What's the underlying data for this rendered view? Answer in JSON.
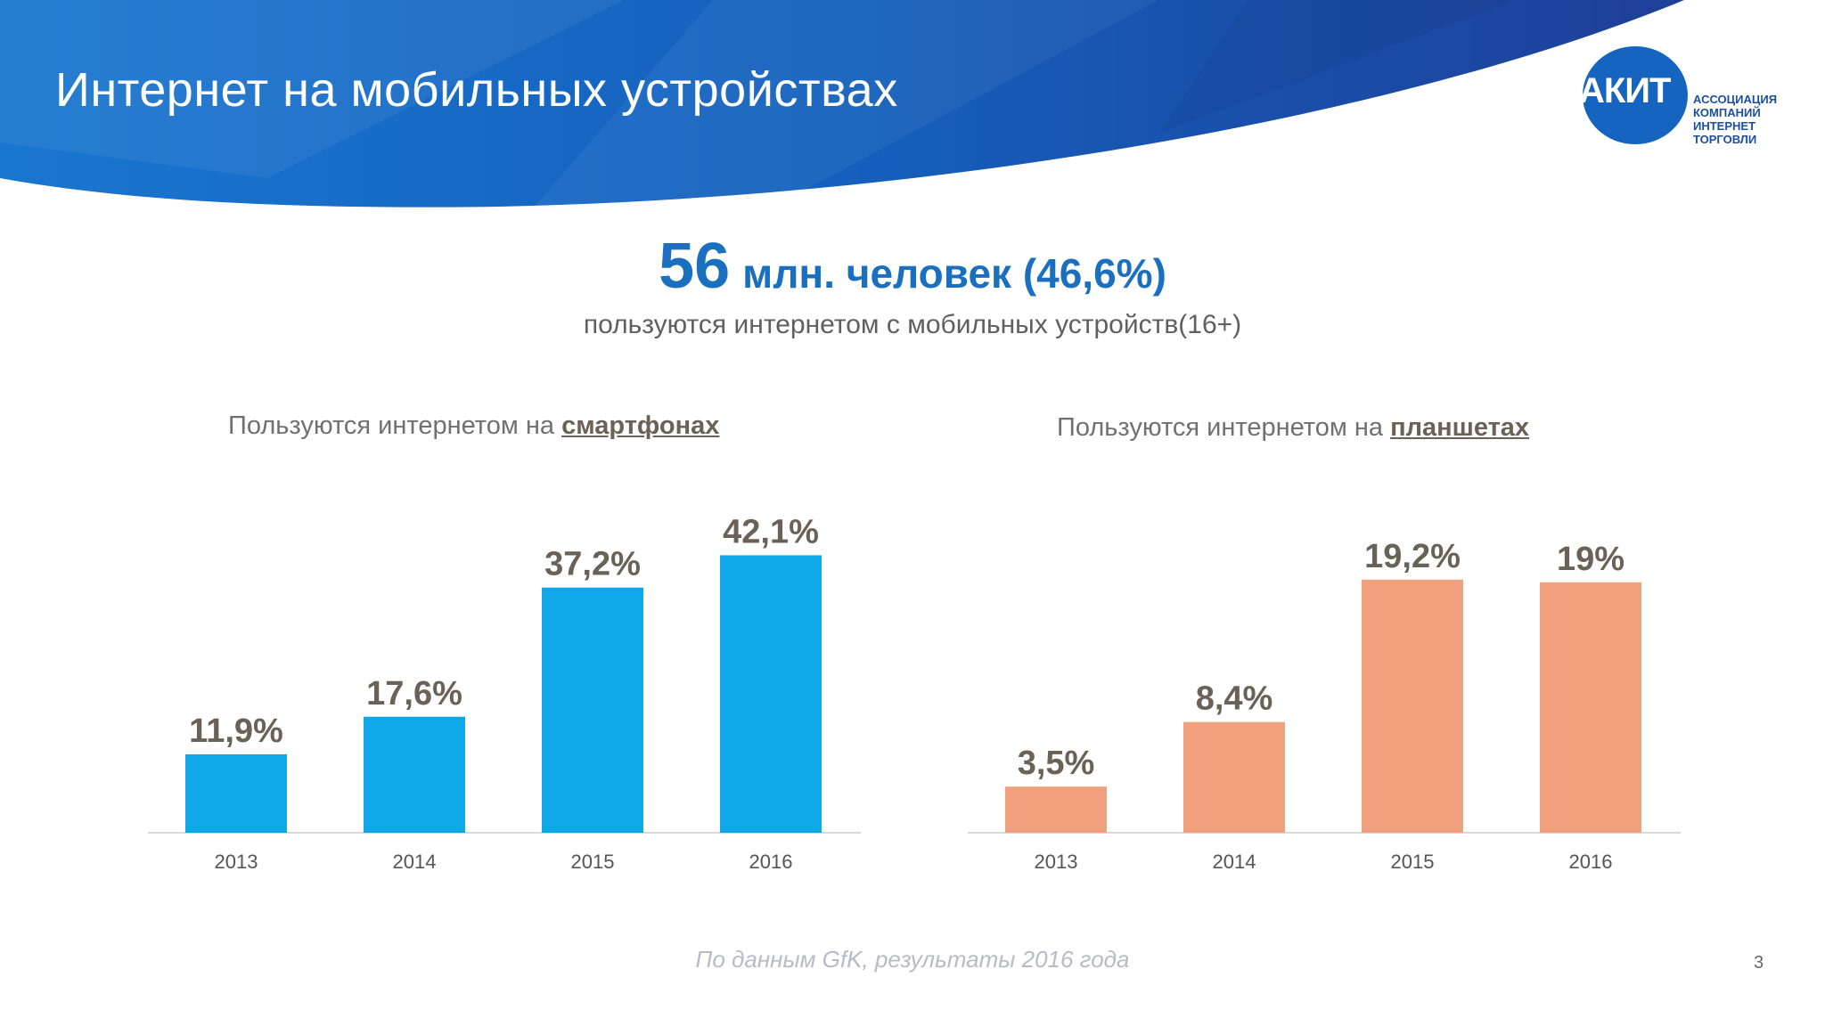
{
  "slide": {
    "title": "Интернет на мобильных устройствах",
    "page_number": "3"
  },
  "logo": {
    "abbr": "АКИТ",
    "lines": [
      "ассоциация",
      "компаний",
      "интернет",
      "торговли"
    ]
  },
  "headline": {
    "number": "56",
    "rest": "млн. человек (46,6%)",
    "sub": "пользуются интернетом с мобильных устройств(16+)"
  },
  "footnote": "По данным GfK, результаты 2016 года",
  "colors": {
    "header_blue": "#1565c0",
    "headline_blue": "#1a6fbe",
    "smartphone_bar": "#0ea8e8",
    "tablet_bar": "#f0a07c",
    "value_label": "#6b6257"
  },
  "chart_data": [
    {
      "type": "bar",
      "title_prefix": "Пользуются интернетом на ",
      "title_emphasis": "смартфонах",
      "categories": [
        "2013",
        "2014",
        "2015",
        "2016"
      ],
      "values": [
        11.9,
        17.6,
        37.2,
        42.1
      ],
      "value_labels": [
        "11,9%",
        "17,6%",
        "37,2%",
        "42,1%"
      ],
      "ylim": [
        0,
        50
      ],
      "grid": false,
      "color": "#0ea8e8"
    },
    {
      "type": "bar",
      "title_prefix": "Пользуются интернетом на ",
      "title_emphasis": "планшетах",
      "categories": [
        "2013",
        "2014",
        "2015",
        "2016"
      ],
      "values": [
        3.5,
        8.4,
        19.2,
        19.0
      ],
      "value_labels": [
        "3,5%",
        "8,4%",
        "19,2%",
        "19%"
      ],
      "ylim": [
        0,
        25
      ],
      "grid": false,
      "color": "#f0a07c"
    }
  ]
}
